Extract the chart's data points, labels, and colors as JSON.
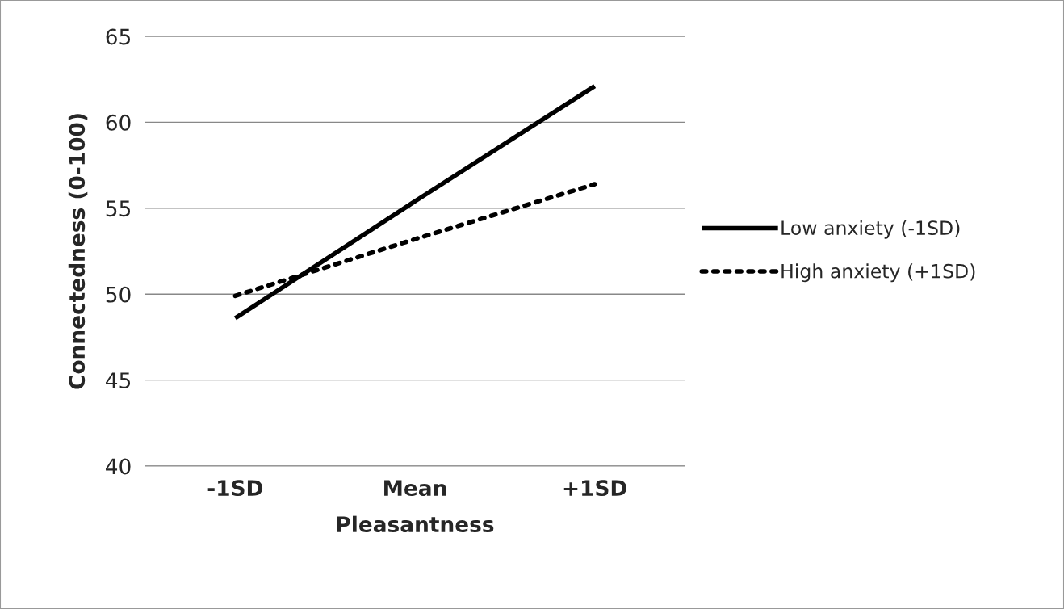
{
  "chart_data": {
    "type": "line",
    "xlabel": "Pleasantness",
    "ylabel": "Connectedness (0-100)",
    "categories": [
      "-1SD",
      "Mean",
      "+1SD"
    ],
    "series": [
      {
        "name": "Low anxiety (-1SD)",
        "color": "#000000",
        "line_style": "solid",
        "values": [
          48.6,
          55.4,
          62.1
        ]
      },
      {
        "name": "High anxiety (+1SD)",
        "color": "#000000",
        "line_style": "dotted",
        "values": [
          49.9,
          53.2,
          56.4
        ]
      }
    ],
    "ylim": [
      40,
      65
    ],
    "yticks": [
      40,
      45,
      50,
      55,
      60,
      65
    ],
    "grid": "y",
    "legend": "right",
    "marker": "none"
  }
}
